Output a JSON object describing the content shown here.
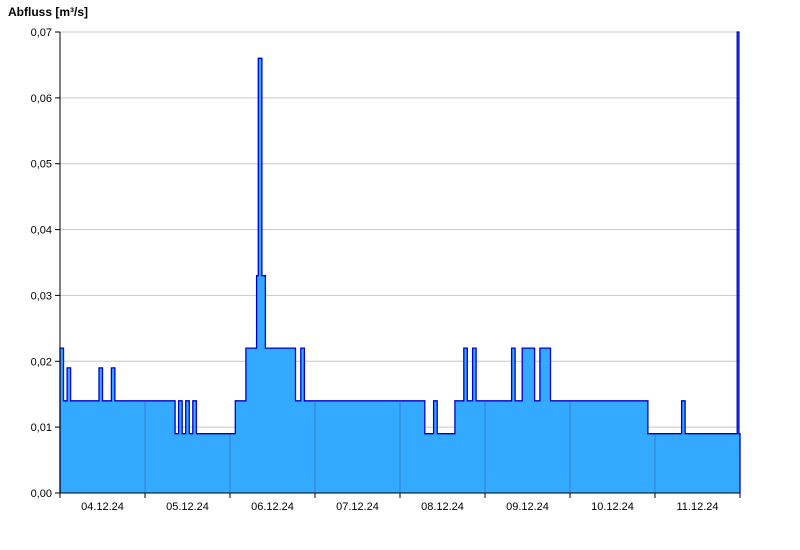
{
  "title": "Abfluss [m³/s]",
  "chart_data": {
    "type": "area",
    "mode": "step",
    "title": "Abfluss [m³/s]",
    "ylabel": "Abfluss [m³/s]",
    "unit": "m³/s",
    "ylim": [
      0,
      0.07
    ],
    "y_tick_values": [
      0,
      0.01,
      0.02,
      0.03,
      0.04,
      0.05,
      0.06,
      0.07
    ],
    "y_tick_labels": [
      "0,00",
      "0,01",
      "0,02",
      "0,03",
      "0,04",
      "0,05",
      "0,06",
      "0,07"
    ],
    "x_tick_labels": [
      "04.12.24",
      "05.12.24",
      "06.12.24",
      "07.12.24",
      "08.12.24",
      "09.12.24",
      "10.12.24",
      "11.12.24"
    ],
    "x_range_hours": [
      0,
      192
    ],
    "day_boundaries_hours": [
      24,
      48,
      72,
      96,
      120,
      144,
      168
    ],
    "grid": "horizontal",
    "legend": false,
    "colors": {
      "fill": "#33AAFF",
      "line": "#0000CC",
      "grid": "#C8C8C8",
      "axis": "#000000",
      "day_line": "#3A7FC2",
      "background": "#FFFFFF"
    },
    "series": [
      {
        "name": "Abfluss",
        "unit": "m³/s",
        "points_hours_value": [
          [
            0,
            0.022
          ],
          [
            1,
            0.014
          ],
          [
            2,
            0.019
          ],
          [
            3,
            0.014
          ],
          [
            11,
            0.019
          ],
          [
            12,
            0.014
          ],
          [
            14.5,
            0.019
          ],
          [
            15.5,
            0.014
          ],
          [
            32.5,
            0.009
          ],
          [
            33.5,
            0.014
          ],
          [
            34.5,
            0.009
          ],
          [
            35.5,
            0.014
          ],
          [
            36.5,
            0.009
          ],
          [
            37.5,
            0.014
          ],
          [
            38.5,
            0.009
          ],
          [
            49.5,
            0.014
          ],
          [
            52.5,
            0.022
          ],
          [
            55.5,
            0.033
          ],
          [
            56,
            0.066
          ],
          [
            57,
            0.033
          ],
          [
            58,
            0.022
          ],
          [
            66.5,
            0.014
          ],
          [
            68,
            0.022
          ],
          [
            69,
            0.014
          ],
          [
            103,
            0.009
          ],
          [
            105.5,
            0.014
          ],
          [
            106.5,
            0.009
          ],
          [
            111.5,
            0.014
          ],
          [
            114,
            0.022
          ],
          [
            115,
            0.014
          ],
          [
            116.5,
            0.022
          ],
          [
            117.5,
            0.014
          ],
          [
            127.5,
            0.022
          ],
          [
            128.5,
            0.014
          ],
          [
            130.5,
            0.022
          ],
          [
            134,
            0.014
          ],
          [
            135.5,
            0.022
          ],
          [
            138.5,
            0.014
          ],
          [
            166,
            0.009
          ],
          [
            175.5,
            0.014
          ],
          [
            176.5,
            0.009
          ],
          [
            191.2,
            0.07
          ],
          [
            191.7,
            0.009
          ]
        ]
      }
    ]
  }
}
